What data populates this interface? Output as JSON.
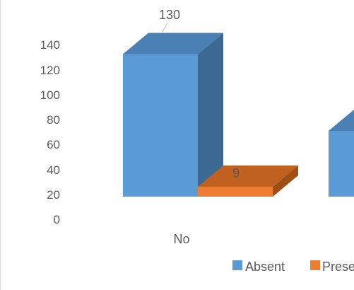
{
  "chart_data": {
    "type": "bar",
    "categories": [
      "No",
      ""
    ],
    "series": [
      {
        "name": "Absent",
        "values": [
          130,
          60
        ],
        "color": "#5b9bd5"
      },
      {
        "name": "Present",
        "values": [
          9,
          null
        ],
        "color": "#ed7d31"
      }
    ],
    "data_labels": [
      "130",
      "9"
    ],
    "yticks": [
      "0",
      "20",
      "40",
      "60",
      "80",
      "100",
      "120",
      "140"
    ],
    "ylim": [
      0,
      140
    ],
    "grid": false,
    "legend_position": "bottom",
    "legend": [
      "Absent",
      "Prese"
    ]
  }
}
